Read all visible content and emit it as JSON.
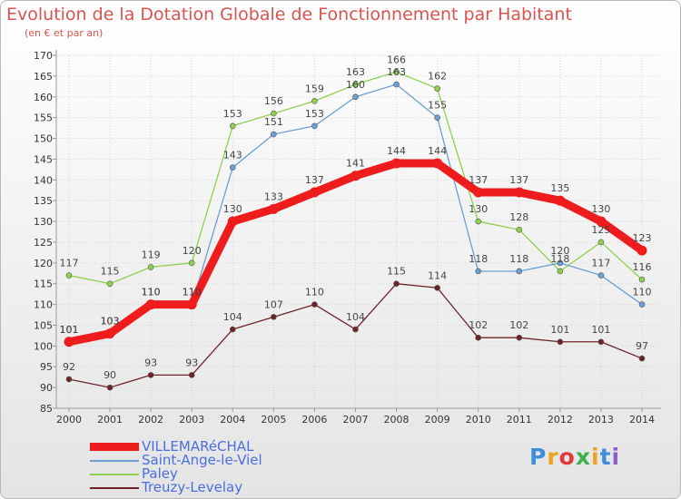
{
  "header": {
    "title": "Evolution de la Dotation Globale de Fonctionnement par Habitant",
    "subtitle": "(en € et par an)"
  },
  "chart_data": {
    "type": "line",
    "title": "Evolution de la Dotation Globale de Fonctionnement par Habitant",
    "subtitle": "(en € et par an)",
    "xlabel": "",
    "ylabel": "",
    "x": [
      2000,
      2001,
      2002,
      2003,
      2004,
      2005,
      2006,
      2007,
      2008,
      2009,
      2010,
      2011,
      2012,
      2013,
      2014
    ],
    "ylim": [
      85,
      170
    ],
    "yticks": [
      85,
      90,
      95,
      100,
      105,
      110,
      115,
      120,
      125,
      130,
      135,
      140,
      145,
      150,
      155,
      160,
      165,
      170
    ],
    "grid": true,
    "legend_position": "bottom-left",
    "series": [
      {
        "name": "Treuzy-Levelay",
        "color": "#6e2328",
        "values": [
          92,
          90,
          93,
          93,
          104,
          107,
          110,
          104,
          115,
          114,
          102,
          102,
          101,
          101,
          97
        ]
      },
      {
        "name": "Paley",
        "color": "#8fd14f",
        "values": [
          117,
          115,
          119,
          120,
          153,
          156,
          159,
          163,
          166,
          162,
          130,
          128,
          118,
          125,
          116
        ]
      },
      {
        "name": "Saint-Ange-le-Viel",
        "color": "#6c9fd4",
        "values": [
          101,
          103,
          110,
          110,
          143,
          151,
          153,
          160,
          163,
          155,
          118,
          118,
          120,
          117,
          110
        ]
      },
      {
        "name": "VILLEMARéCHAL",
        "color": "#ee1c1c",
        "values": [
          101,
          103,
          110,
          110,
          130,
          133,
          137,
          141,
          144,
          144,
          137,
          137,
          135,
          130,
          123
        ]
      }
    ]
  },
  "legend": [
    {
      "label": "VILLEMARéCHAL",
      "color": "#ee1c1c"
    },
    {
      "label": "Saint-Ange-le-Viel",
      "color": "#6c9fd4"
    },
    {
      "label": "Paley",
      "color": "#8fd14f"
    },
    {
      "label": "Treuzy-Levelay",
      "color": "#6e2328"
    }
  ],
  "logo": {
    "letters": [
      "P",
      "r",
      "o",
      "x",
      "i",
      "t",
      "i"
    ],
    "colors": [
      "#3f8fd8",
      "#f0a020",
      "#e23a3a",
      "#3fb04f",
      "#f0a020",
      "#3f8fd8",
      "#8a5fc8"
    ]
  }
}
